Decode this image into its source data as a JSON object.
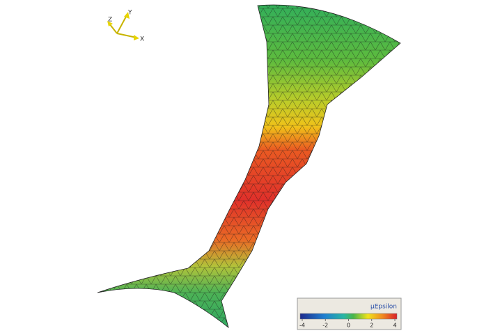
{
  "triad": {
    "labels": [
      "Z",
      "Y",
      "X"
    ]
  },
  "colorbar": {
    "title": "µEpsilon",
    "lim": [
      -4,
      4
    ],
    "ticks": [
      -4,
      -2,
      0,
      2,
      4
    ]
  }
}
